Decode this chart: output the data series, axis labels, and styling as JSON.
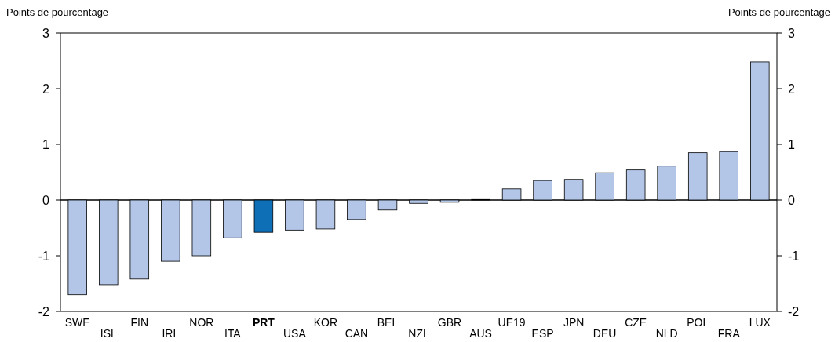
{
  "chart_data": {
    "type": "bar",
    "ylabel": "Points de pourcentage",
    "y2label": "Points de pourcentage",
    "categories": [
      "SWE",
      "ISL",
      "FIN",
      "IRL",
      "NOR",
      "ITA",
      "PRT",
      "USA",
      "KOR",
      "CAN",
      "BEL",
      "NZL",
      "GBR",
      "AUS",
      "UE19",
      "ESP",
      "JPN",
      "DEU",
      "CZE",
      "NLD",
      "POL",
      "FRA",
      "LUX"
    ],
    "values": [
      -1.7,
      -1.52,
      -1.42,
      -1.1,
      -1.0,
      -0.68,
      -0.58,
      -0.54,
      -0.52,
      -0.35,
      -0.18,
      -0.06,
      -0.04,
      0.01,
      0.2,
      0.35,
      0.37,
      0.49,
      0.54,
      0.61,
      0.85,
      0.87,
      2.48
    ],
    "colors": [
      "#b3c6e7",
      "#b3c6e7",
      "#b3c6e7",
      "#b3c6e7",
      "#b3c6e7",
      "#b3c6e7",
      "#0f6fb6",
      "#b3c6e7",
      "#b3c6e7",
      "#b3c6e7",
      "#b3c6e7",
      "#b3c6e7",
      "#b3c6e7",
      "#b3c6e7",
      "#b3c6e7",
      "#b3c6e7",
      "#b3c6e7",
      "#b3c6e7",
      "#b3c6e7",
      "#b3c6e7",
      "#b3c6e7",
      "#b3c6e7",
      "#b3c6e7"
    ],
    "ylim": [
      -2,
      3
    ],
    "yticks": [
      -2,
      -1,
      0,
      1,
      2,
      3
    ],
    "y2lim": [
      -2,
      3
    ],
    "y2ticks": [
      -2,
      -1,
      0,
      1,
      2,
      3
    ]
  }
}
